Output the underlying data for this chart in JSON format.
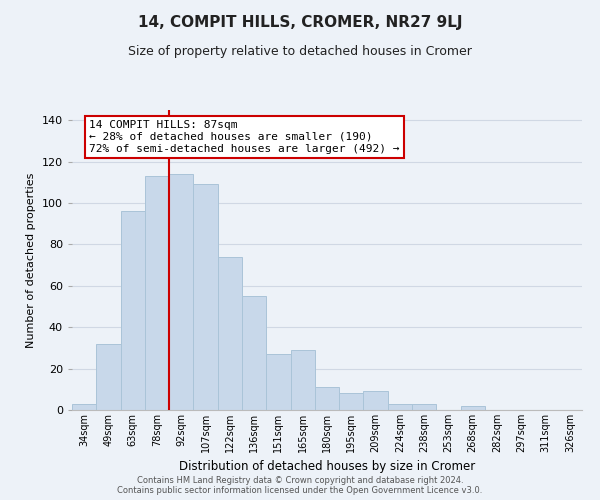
{
  "title": "14, COMPIT HILLS, CROMER, NR27 9LJ",
  "subtitle": "Size of property relative to detached houses in Cromer",
  "xlabel": "Distribution of detached houses by size in Cromer",
  "ylabel": "Number of detached properties",
  "bar_labels": [
    "34sqm",
    "49sqm",
    "63sqm",
    "78sqm",
    "92sqm",
    "107sqm",
    "122sqm",
    "136sqm",
    "151sqm",
    "165sqm",
    "180sqm",
    "195sqm",
    "209sqm",
    "224sqm",
    "238sqm",
    "253sqm",
    "268sqm",
    "282sqm",
    "297sqm",
    "311sqm",
    "326sqm"
  ],
  "bar_values": [
    3,
    32,
    96,
    113,
    114,
    109,
    74,
    55,
    27,
    29,
    11,
    8,
    9,
    3,
    3,
    0,
    2,
    0,
    0,
    0,
    0
  ],
  "bar_color": "#c8d8ea",
  "bar_edge_color": "#aac4d8",
  "vline_color": "#cc0000",
  "annotation_text": "14 COMPIT HILLS: 87sqm\n← 28% of detached houses are smaller (190)\n72% of semi-detached houses are larger (492) →",
  "annotation_box_color": "#ffffff",
  "annotation_box_edge": "#cc0000",
  "ylim": [
    0,
    145
  ],
  "grid_color": "#d0d8e4",
  "footer_line1": "Contains HM Land Registry data © Crown copyright and database right 2024.",
  "footer_line2": "Contains public sector information licensed under the Open Government Licence v3.0.",
  "background_color": "#edf2f8",
  "title_fontsize": 11,
  "subtitle_fontsize": 9
}
